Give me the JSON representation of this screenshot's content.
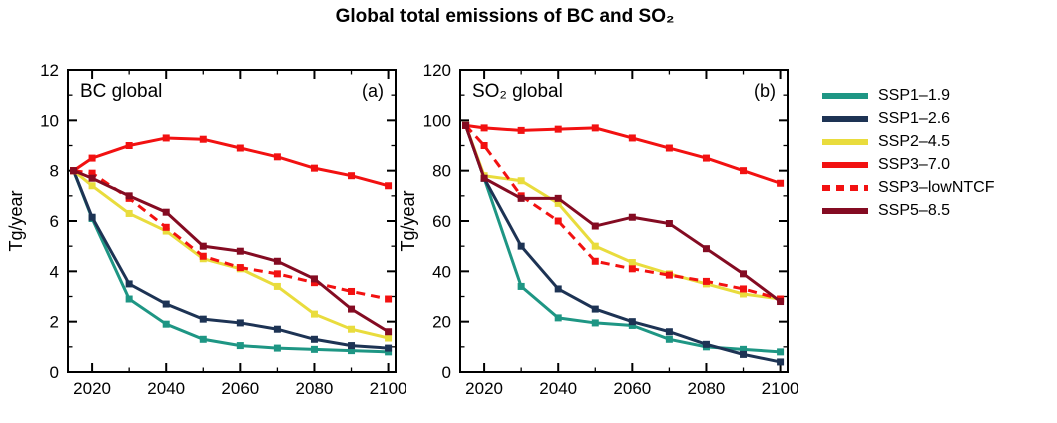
{
  "figure_title": "Global total emissions of BC and SO₂",
  "legend": {
    "entries": [
      {
        "label": "SSP1–1.9",
        "color": "#1e9684",
        "dashed": false
      },
      {
        "label": "SSP1–2.6",
        "color": "#1d3354",
        "dashed": false
      },
      {
        "label": "SSP2–4.5",
        "color": "#e9dc3d",
        "dashed": false
      },
      {
        "label": "SSP3–7.0",
        "color": "#f21111",
        "dashed": false
      },
      {
        "label": "SSP3–lowNTCF",
        "color": "#f21111",
        "dashed": true
      },
      {
        "label": "SSP5–8.5",
        "color": "#840b22",
        "dashed": false
      }
    ]
  },
  "chart_data": [
    {
      "type": "line",
      "title": "BC global",
      "panel_label": "(a)",
      "ylabel": "Tg/year",
      "xlim": [
        2013.5,
        2102
      ],
      "ylim": [
        0,
        12
      ],
      "xticks": [
        2020,
        2040,
        2060,
        2080,
        2100
      ],
      "yticks": [
        0,
        2,
        4,
        6,
        8,
        10,
        12
      ],
      "xminor": 10,
      "yminor": 1,
      "x": [
        2015,
        2020,
        2030,
        2040,
        2050,
        2060,
        2070,
        2080,
        2090,
        2100
      ],
      "series": [
        {
          "name": "SSP1-1.9",
          "color": "#1e9684",
          "dashed": false,
          "values": [
            8.0,
            6.1,
            2.9,
            1.9,
            1.3,
            1.05,
            0.95,
            0.9,
            0.85,
            0.8
          ]
        },
        {
          "name": "SSP1-2.6",
          "color": "#1d3354",
          "dashed": false,
          "values": [
            8.0,
            6.15,
            3.5,
            2.7,
            2.1,
            1.95,
            1.7,
            1.3,
            1.05,
            0.95
          ]
        },
        {
          "name": "SSP2-4.5",
          "color": "#e9dc3d",
          "dashed": false,
          "values": [
            8.0,
            7.4,
            6.3,
            5.6,
            4.5,
            4.1,
            3.4,
            2.3,
            1.7,
            1.35
          ]
        },
        {
          "name": "SSP3-7.0",
          "color": "#f21111",
          "dashed": false,
          "values": [
            8.0,
            8.5,
            9.0,
            9.3,
            9.25,
            8.9,
            8.55,
            8.1,
            7.8,
            7.4
          ]
        },
        {
          "name": "SSP3-lowNTCF",
          "color": "#f21111",
          "dashed": true,
          "values": [
            8.0,
            7.9,
            6.9,
            5.75,
            4.6,
            4.15,
            3.9,
            3.55,
            3.2,
            2.9
          ]
        },
        {
          "name": "SSP5-8.5",
          "color": "#840b22",
          "dashed": false,
          "values": [
            8.0,
            7.7,
            7.0,
            6.35,
            5.0,
            4.8,
            4.4,
            3.7,
            2.5,
            1.6
          ]
        }
      ]
    },
    {
      "type": "line",
      "title": "SO₂ global",
      "panel_label": "(b)",
      "ylabel": "Tg/year",
      "xlim": [
        2013.5,
        2102
      ],
      "ylim": [
        0,
        120
      ],
      "xticks": [
        2020,
        2040,
        2060,
        2080,
        2100
      ],
      "yticks": [
        0,
        20,
        40,
        60,
        80,
        100,
        120
      ],
      "xminor": 10,
      "yminor": 10,
      "x": [
        2015,
        2020,
        2030,
        2040,
        2050,
        2060,
        2070,
        2080,
        2090,
        2100
      ],
      "series": [
        {
          "name": "SSP1-1.9",
          "color": "#1e9684",
          "dashed": false,
          "values": [
            98,
            77,
            34,
            21.5,
            19.5,
            18.5,
            13,
            10,
            9,
            8
          ]
        },
        {
          "name": "SSP1-2.6",
          "color": "#1d3354",
          "dashed": false,
          "values": [
            98,
            77,
            50,
            33,
            25,
            20,
            16,
            11,
            7,
            4
          ]
        },
        {
          "name": "SSP2-4.5",
          "color": "#e9dc3d",
          "dashed": false,
          "values": [
            98,
            78,
            76,
            67,
            50,
            43.5,
            39,
            35,
            31,
            29
          ]
        },
        {
          "name": "SSP3-7.0",
          "color": "#f21111",
          "dashed": false,
          "values": [
            98,
            97,
            96,
            96.5,
            97,
            93,
            89,
            85,
            80,
            75
          ]
        },
        {
          "name": "SSP3-lowNTCF",
          "color": "#f21111",
          "dashed": true,
          "values": [
            98,
            90,
            70,
            60,
            44,
            41,
            38.5,
            36,
            33,
            29
          ]
        },
        {
          "name": "SSP5-8.5",
          "color": "#840b22",
          "dashed": false,
          "values": [
            98,
            77,
            69,
            69,
            58,
            61.5,
            59,
            49,
            39,
            28
          ]
        }
      ]
    }
  ]
}
